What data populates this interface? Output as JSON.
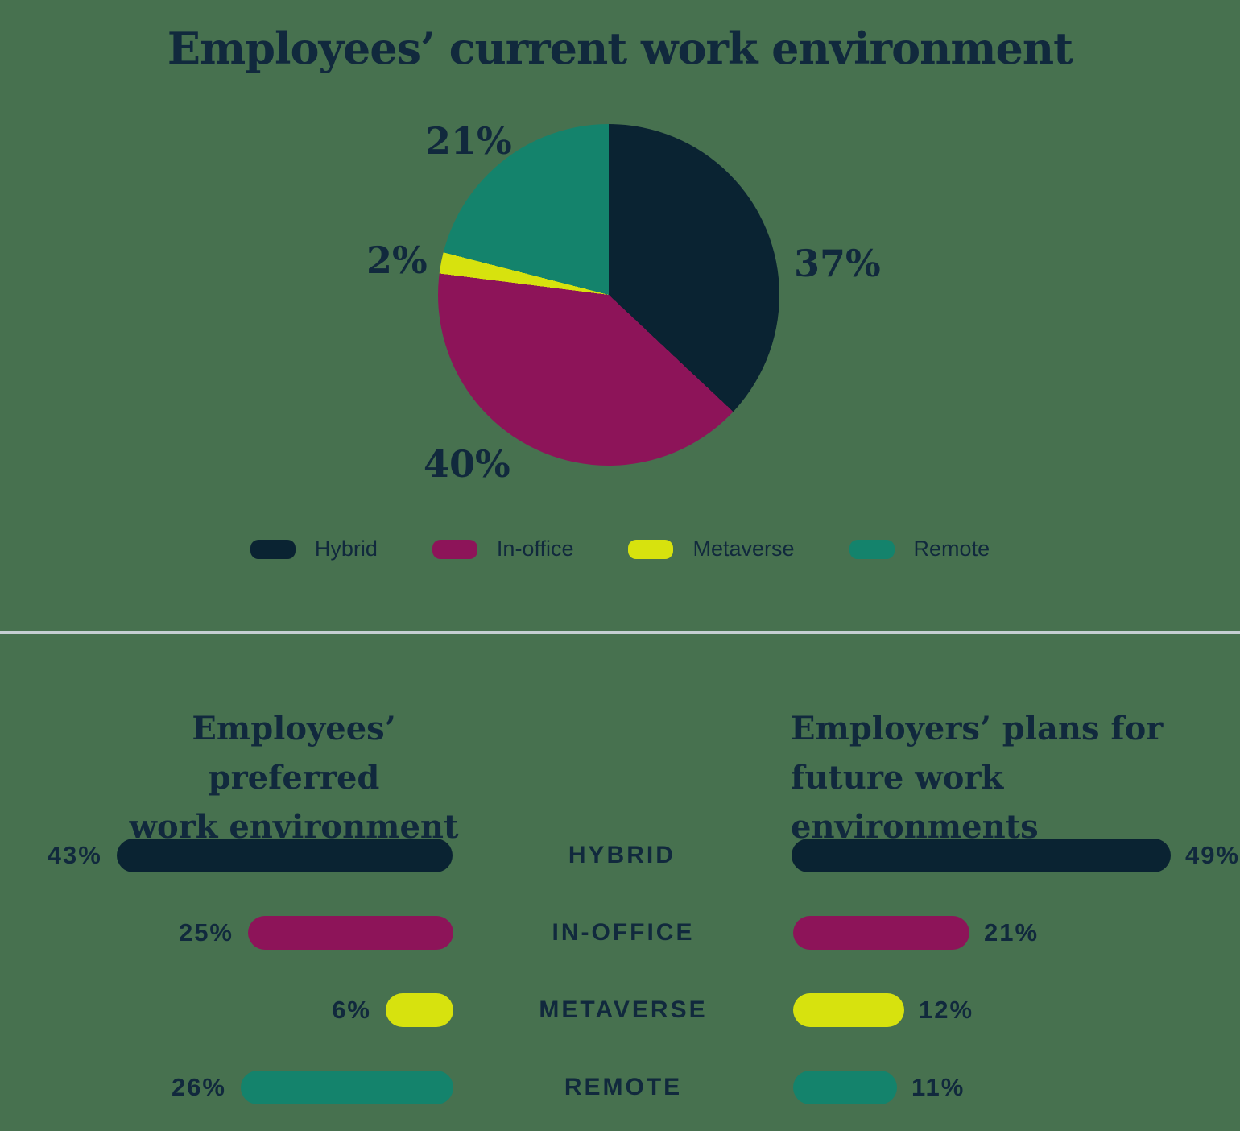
{
  "colors": {
    "background": "#47714f",
    "navy": "#0a2332",
    "magenta": "#8d1459",
    "yellow": "#d7e20e",
    "teal": "#14836c",
    "text": "#11293d",
    "divider": "#c5ced2"
  },
  "pie": {
    "title": "Employees’ current work environment",
    "slices": [
      {
        "label": "Hybrid",
        "value": 37,
        "pct_label": "37%",
        "color": "navy"
      },
      {
        "label": "In-office",
        "value": 40,
        "pct_label": "40%",
        "color": "magenta"
      },
      {
        "label": "Metaverse",
        "value": 2,
        "pct_label": "2%",
        "color": "yellow"
      },
      {
        "label": "Remote",
        "value": 21,
        "pct_label": "21%",
        "color": "teal"
      }
    ]
  },
  "legend": {
    "items": [
      {
        "label": "Hybrid",
        "color": "navy"
      },
      {
        "label": "In-office",
        "color": "magenta"
      },
      {
        "label": "Metaverse",
        "color": "yellow"
      },
      {
        "label": "Remote",
        "color": "teal"
      }
    ]
  },
  "bars": {
    "left_title_line1": "Employees’ preferred",
    "left_title_line2": "work environment",
    "right_title_line1": "Employers’ plans for",
    "right_title_line2": "future work environments",
    "rows": [
      {
        "category": "HYBRID",
        "color": "navy",
        "left_value": 43,
        "left_label": "43%",
        "right_value": 49,
        "right_label": "49%"
      },
      {
        "category": "IN-OFFICE",
        "color": "magenta",
        "left_value": 25,
        "left_label": "25%",
        "right_value": 21,
        "right_label": "21%"
      },
      {
        "category": "METAVERSE",
        "color": "yellow",
        "left_value": 6,
        "left_label": "6%",
        "right_value": 12,
        "right_label": "12%"
      },
      {
        "category": "REMOTE",
        "color": "teal",
        "left_value": 26,
        "left_label": "26%",
        "right_value": 11,
        "right_label": "11%"
      }
    ]
  },
  "chart_data": [
    {
      "type": "pie",
      "title": "Employees’ current work environment",
      "labels": [
        "Hybrid",
        "In-office",
        "Metaverse",
        "Remote"
      ],
      "values": [
        37,
        40,
        2,
        21
      ],
      "colors": [
        "#0a2332",
        "#8d1459",
        "#d7e20e",
        "#14836c"
      ],
      "start_angle": "12 o'clock, clockwise",
      "legend_position": "bottom",
      "data_labels": [
        "37%",
        "40%",
        "2%",
        "21%"
      ]
    },
    {
      "type": "bar",
      "orientation": "horizontal",
      "title": "Employees’ preferred work environment",
      "categories": [
        "HYBRID",
        "IN-OFFICE",
        "METAVERSE",
        "REMOTE"
      ],
      "values": [
        43,
        25,
        6,
        26
      ],
      "colors": [
        "#0a2332",
        "#8d1459",
        "#d7e20e",
        "#14836c"
      ],
      "bar_direction": "right-to-left, labels on left",
      "data_labels": [
        "43%",
        "25%",
        "6%",
        "26%"
      ]
    },
    {
      "type": "bar",
      "orientation": "horizontal",
      "title": "Employers’ plans for future work environments",
      "categories": [
        "HYBRID",
        "IN-OFFICE",
        "METAVERSE",
        "REMOTE"
      ],
      "values": [
        49,
        21,
        12,
        11
      ],
      "colors": [
        "#0a2332",
        "#8d1459",
        "#d7e20e",
        "#14836c"
      ],
      "bar_direction": "left-to-right, labels on right",
      "data_labels": [
        "49%",
        "21%",
        "12%",
        "11%"
      ]
    }
  ]
}
